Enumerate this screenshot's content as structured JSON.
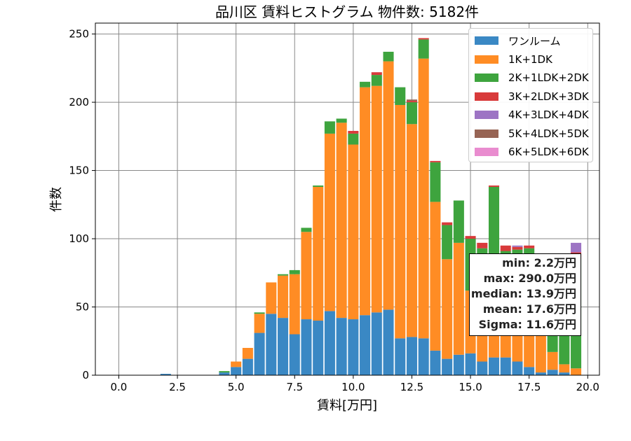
{
  "chart_data": {
    "type": "bar",
    "stacked": true,
    "title": "品川区 賃料ヒストグラム  物件数: 5182件",
    "xlabel": "賃料[万円]",
    "ylabel": "件数",
    "xlim": [
      -1.0,
      20.5
    ],
    "ylim": [
      0,
      258
    ],
    "xticks": [
      "0.0",
      "2.5",
      "5.0",
      "7.5",
      "10.0",
      "12.5",
      "15.0",
      "17.5",
      "20.0"
    ],
    "yticks": [
      "0",
      "50",
      "100",
      "150",
      "200",
      "250"
    ],
    "grid": true,
    "legend_position": "top-right",
    "bin_width": 0.5,
    "x": [
      0.0,
      0.5,
      1.0,
      1.5,
      2.0,
      2.5,
      3.0,
      3.5,
      4.0,
      4.5,
      5.0,
      5.5,
      6.0,
      6.5,
      7.0,
      7.5,
      8.0,
      8.5,
      9.0,
      9.5,
      10.0,
      10.5,
      11.0,
      11.5,
      12.0,
      12.5,
      13.0,
      13.5,
      14.0,
      14.5,
      15.0,
      15.5,
      16.0,
      16.5,
      17.0,
      17.5,
      18.0,
      18.5,
      19.0,
      19.5
    ],
    "series": [
      {
        "name": "ワンルーム",
        "color": "#3a88c4",
        "values": [
          0,
          0,
          0,
          0,
          1,
          0,
          0,
          0,
          0,
          2,
          6,
          12,
          31,
          45,
          42,
          30,
          41,
          40,
          47,
          42,
          41,
          44,
          46,
          48,
          27,
          28,
          27,
          18,
          12,
          15,
          16,
          10,
          13,
          13,
          10,
          6,
          2,
          4,
          2,
          0
        ]
      },
      {
        "name": "1K+1DK",
        "color": "#ff8c24",
        "values": [
          0,
          0,
          0,
          0,
          0,
          0,
          0,
          0,
          0,
          0,
          4,
          8,
          14,
          23,
          31,
          44,
          64,
          98,
          130,
          143,
          128,
          167,
          166,
          182,
          171,
          156,
          205,
          109,
          73,
          82,
          46,
          78,
          70,
          60,
          70,
          69,
          60,
          13,
          6,
          5
        ]
      },
      {
        "name": "2K+1LDK+2DK",
        "color": "#3ea43e",
        "values": [
          0,
          0,
          0,
          0,
          0,
          0,
          0,
          0,
          0,
          1,
          0,
          0,
          1,
          0,
          1,
          3,
          3,
          1,
          9,
          3,
          8,
          4,
          8,
          7,
          13,
          16,
          14,
          29,
          25,
          31,
          38,
          5,
          55,
          18,
          12,
          18,
          13,
          38,
          57,
          80
        ]
      },
      {
        "name": "3K+2LDK+3DK",
        "color": "#d83a3a",
        "values": [
          0,
          0,
          0,
          0,
          0,
          0,
          0,
          0,
          0,
          0,
          0,
          0,
          0,
          0,
          0,
          0,
          0,
          0,
          0,
          0,
          2,
          0,
          2,
          0,
          0,
          1,
          1,
          1,
          2,
          0,
          2,
          4,
          1,
          4,
          2,
          2,
          0,
          0,
          0,
          5
        ]
      },
      {
        "name": "4K+3LDK+4DK",
        "color": "#9d74c4",
        "values": [
          0,
          0,
          0,
          0,
          0,
          0,
          0,
          0,
          0,
          0,
          0,
          0,
          0,
          0,
          0,
          0,
          0,
          0,
          0,
          0,
          0,
          0,
          0,
          0,
          0,
          0,
          0,
          0,
          0,
          0,
          0,
          0,
          0,
          0,
          1,
          0,
          1,
          0,
          0,
          7
        ]
      },
      {
        "name": "5K+4LDK+5DK",
        "color": "#976454",
        "values": [
          0,
          0,
          0,
          0,
          0,
          0,
          0,
          0,
          0,
          0,
          0,
          0,
          0,
          0,
          0,
          0,
          0,
          0,
          0,
          0,
          0,
          0,
          0,
          0,
          0,
          1,
          0,
          0,
          0,
          0,
          0,
          0,
          0,
          0,
          0,
          0,
          0,
          0,
          0,
          0
        ]
      },
      {
        "name": "6K+5LDK+6DK",
        "color": "#e98ccf",
        "values": [
          0,
          0,
          0,
          0,
          0,
          0,
          0,
          0,
          0,
          0,
          0,
          0,
          0,
          0,
          0,
          0,
          0,
          0,
          0,
          0,
          0,
          0,
          0,
          0,
          0,
          0,
          0,
          0,
          0,
          0,
          0,
          0,
          0,
          0,
          0,
          0,
          0,
          0,
          0,
          0
        ]
      }
    ]
  },
  "stats": {
    "min": "min: 2.2万円",
    "max": "max: 290.0万円",
    "median": "median: 13.9万円",
    "mean": "mean: 17.6万円",
    "sigma": "Sigma: 11.6万円"
  }
}
